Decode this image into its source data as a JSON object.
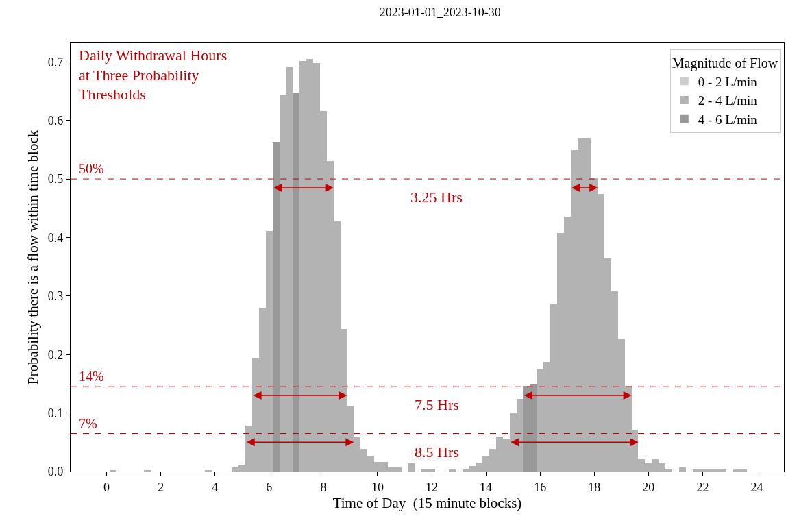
{
  "chart_data": {
    "type": "bar",
    "title": "2023-01-01_2023-10-30",
    "xlabel": "Time of Day  (15 minute blocks)",
    "ylabel": "Probability there is a flow within time block",
    "legend_title": "Magnitude of Flow",
    "legend": "top right",
    "x": [
      0,
      0.25,
      0.5,
      0.75,
      1,
      1.25,
      1.5,
      1.75,
      2,
      2.25,
      2.5,
      2.75,
      3,
      3.25,
      3.5,
      3.75,
      4,
      4.25,
      4.5,
      4.75,
      5,
      5.25,
      5.5,
      5.75,
      6,
      6.25,
      6.5,
      6.75,
      7,
      7.25,
      7.5,
      7.75,
      8,
      8.25,
      8.5,
      8.75,
      9,
      9.25,
      9.5,
      9.75,
      10,
      10.25,
      10.5,
      10.75,
      11,
      11.25,
      11.5,
      11.75,
      12,
      12.25,
      12.5,
      12.75,
      13,
      13.25,
      13.5,
      13.75,
      14,
      14.25,
      14.5,
      14.75,
      15,
      15.25,
      15.5,
      15.75,
      16,
      16.25,
      16.5,
      16.75,
      17,
      17.25,
      17.5,
      17.75,
      18,
      18.25,
      18.5,
      18.75,
      19,
      19.25,
      19.5,
      19.75,
      20,
      20.25,
      20.5,
      20.75,
      21,
      21.25,
      21.5,
      21.75,
      22,
      22.25,
      22.5,
      22.75,
      23,
      23.25,
      23.5,
      23.75
    ],
    "series": [
      {
        "name": "0 - 2 L/min",
        "color": "#cccccc",
        "values": [
          null,
          null,
          null,
          null,
          null,
          null,
          null,
          null,
          null,
          null,
          null,
          null,
          null,
          null,
          null,
          null,
          null,
          null,
          null,
          null,
          null,
          null,
          null,
          null,
          null,
          null,
          null,
          null,
          null,
          null,
          null,
          null,
          null,
          null,
          null,
          null,
          null,
          null,
          null,
          null,
          null,
          null,
          null,
          null,
          null,
          null,
          null,
          null,
          null,
          null,
          null,
          null,
          null,
          null,
          null,
          null,
          null,
          null,
          null,
          null,
          null,
          null,
          null,
          null,
          null,
          null,
          null,
          null,
          null,
          null,
          null,
          null,
          null,
          null,
          null,
          null,
          null,
          null,
          null,
          null,
          null,
          null,
          null,
          null,
          null,
          null,
          null,
          null,
          null,
          null,
          null,
          null,
          null,
          null,
          null,
          null
        ]
      },
      {
        "name": "2 - 4 L/min",
        "color": "#b3b3b3",
        "values": [
          0,
          0.002,
          0,
          0,
          0,
          0,
          0.002,
          0,
          0,
          0,
          0,
          0,
          0,
          0,
          0,
          0.002,
          0,
          0,
          0,
          0.007,
          0.01,
          0.078,
          0.194,
          0.28,
          0.411,
          null,
          0.644,
          0.691,
          null,
          0.702,
          0.705,
          0.698,
          0.616,
          0.531,
          0.428,
          0.244,
          0.113,
          0.06,
          0.039,
          0.027,
          0.016,
          0.016,
          0.007,
          0.007,
          0,
          0.014,
          0,
          0.005,
          0.005,
          0,
          0,
          0.003,
          0,
          0.004,
          0.009,
          0.015,
          0.027,
          0.039,
          0.06,
          0.056,
          0.099,
          0.124,
          null,
          null,
          0.174,
          0.187,
          0.286,
          0.407,
          0.436,
          0.549,
          0.569,
          0.569,
          0.503,
          0.474,
          0.364,
          0.308,
          0.227,
          0.146,
          0.071,
          0.021,
          0.014,
          0.021,
          0.014,
          0.003,
          0,
          0.007,
          0,
          0.003,
          0.003,
          0.003,
          0.003,
          0.003,
          0,
          0.003,
          0.003,
          0
        ]
      },
      {
        "name": "4 - 6 L/min",
        "color": "#999999",
        "values": [
          null,
          null,
          null,
          null,
          null,
          null,
          null,
          null,
          null,
          null,
          null,
          null,
          null,
          null,
          null,
          null,
          null,
          null,
          null,
          null,
          null,
          null,
          null,
          null,
          null,
          0.563,
          null,
          null,
          0.648,
          null,
          null,
          null,
          null,
          null,
          null,
          null,
          null,
          null,
          null,
          null,
          null,
          null,
          null,
          null,
          null,
          null,
          null,
          null,
          null,
          null,
          null,
          null,
          null,
          null,
          null,
          null,
          null,
          null,
          null,
          null,
          null,
          null,
          0.146,
          0.15,
          null,
          null,
          null,
          null,
          null,
          null,
          null,
          null,
          null,
          null,
          null,
          null,
          null,
          null,
          null,
          null,
          null,
          null,
          null,
          null,
          null,
          null,
          null,
          null,
          null,
          null,
          null,
          null,
          null,
          null,
          null,
          null
        ]
      }
    ],
    "xlim": [
      -1.33,
      25
    ],
    "xticks": [
      0,
      2,
      4,
      6,
      8,
      10,
      12,
      14,
      16,
      18,
      20,
      22,
      24
    ],
    "ylim": [
      0,
      0.732
    ],
    "yticks": [
      {
        "value": 0,
        "label": "0.0"
      },
      0.1,
      0.2,
      0.3,
      0.4,
      0.5,
      0.6,
      0.7
    ],
    "ref_lines": [
      {
        "axis": "y",
        "value": 0.5,
        "label": "50%",
        "color": "#c00000",
        "line_style": "dashed"
      },
      {
        "axis": "y",
        "value": 0.145,
        "label": "14%",
        "color": "#c00000",
        "line_style": "dashed"
      },
      {
        "axis": "y",
        "value": 0.065,
        "label": "7%",
        "color": "#c00000",
        "line_style": "dashed"
      }
    ],
    "annotations": [
      "Daily Withdrawal Hours\nat Three Probability\nThresholds",
      "3.25 Hrs",
      "7.5 Hrs",
      "8.5 Hrs"
    ]
  }
}
